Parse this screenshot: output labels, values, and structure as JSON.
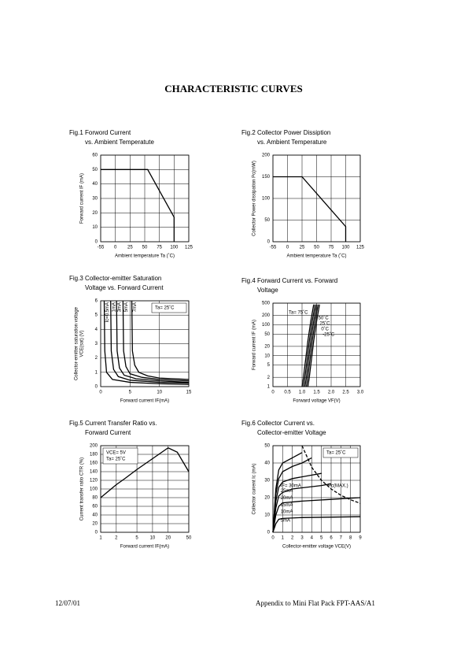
{
  "header": {
    "title": "CHARACTERISTIC CURVES"
  },
  "footer": {
    "date": "12/07/01",
    "text": "Appendix to Mini Flat Pack FPT-AAS/A1"
  },
  "chart_data": [
    {
      "type": "line",
      "title": "Fig.1 Forword Current",
      "subtitle": "vs. Ambient Temperatute",
      "xlabel": "Ambient temperature Ta (˚C)",
      "ylabel": [
        "Forward current IF (mA)"
      ],
      "xlim": [
        -55,
        125
      ],
      "xticks": [
        -55,
        0,
        25,
        50,
        75,
        100,
        125
      ],
      "ylim": [
        0,
        60
      ],
      "yticks": [
        0,
        10,
        20,
        30,
        40,
        50,
        60
      ],
      "grid": true,
      "color": "#000000",
      "series": [
        {
          "x": [
            -55,
            55,
            100,
            100
          ],
          "values": [
            50,
            50,
            17,
            0
          ]
        }
      ]
    },
    {
      "type": "line",
      "title": "Fig.2 Collector Power Dissiption",
      "subtitle": "vs. Ambient Temperature",
      "xlabel": "Ambient temperature Ta (˚C)",
      "ylabel": [
        "Collector Power dissipation Pc(mW)"
      ],
      "xlim": [
        -55,
        125
      ],
      "xticks": [
        -55,
        0,
        25,
        50,
        75,
        100,
        125
      ],
      "ylim": [
        0,
        200
      ],
      "yticks": [
        0,
        50,
        100,
        150,
        200
      ],
      "grid": true,
      "color": "#000000",
      "series": [
        {
          "x": [
            -55,
            25,
            100,
            100
          ],
          "values": [
            150,
            150,
            35,
            0
          ]
        }
      ]
    },
    {
      "type": "line",
      "title": "Fig.3 Collector-emitter Saturation",
      "subtitle": "Voltage vs. Forward Current",
      "xlabel": "Forward current IF(mA)",
      "ylabel": [
        "Collector-emitter saturation voltage",
        "VCE(sat) (V)"
      ],
      "xlim": [
        0,
        15
      ],
      "xticks": [
        0,
        5,
        10,
        15
      ],
      "ylim": [
        0,
        6
      ],
      "yticks": [
        0,
        1,
        2,
        3,
        4,
        5,
        6
      ],
      "grid": true,
      "color": "#000000",
      "annotations": [
        "Ta= 25˚C"
      ],
      "annotation_corner": "upper right",
      "series": [
        {
          "name": "Ic=0.5mA",
          "x": [
            0.6,
            0.7,
            1,
            2,
            5,
            10,
            15
          ],
          "values": [
            6,
            2.5,
            1,
            0.5,
            0.3,
            0.2,
            0.15
          ]
        },
        {
          "name": "1mA",
          "x": [
            1.7,
            1.8,
            2.2,
            3,
            5,
            10,
            15
          ],
          "values": [
            6,
            2.5,
            1.2,
            0.7,
            0.45,
            0.3,
            0.25
          ]
        },
        {
          "name": "3mA",
          "x": [
            2.7,
            2.8,
            3.2,
            4,
            6,
            10,
            15
          ],
          "values": [
            6,
            2.5,
            1.3,
            0.8,
            0.55,
            0.4,
            0.3
          ]
        },
        {
          "name": "5mA",
          "x": [
            3.8,
            3.9,
            4.3,
            5,
            7,
            10,
            15
          ],
          "values": [
            6,
            2.5,
            1.4,
            0.9,
            0.65,
            0.5,
            0.4
          ]
        },
        {
          "name": "7mA",
          "x": [
            5.3,
            5.4,
            5.8,
            6.5,
            8,
            10,
            15
          ],
          "values": [
            6,
            2.5,
            1.5,
            1,
            0.75,
            0.6,
            0.5
          ]
        }
      ]
    },
    {
      "type": "line",
      "title": "Fig.4 Forward Current vs. Forward",
      "subtitle": "Voltage",
      "xlabel": "Forward voltage VF(V)",
      "ylabel": [
        "Forward current IF (mA)"
      ],
      "xlim": [
        0,
        3
      ],
      "xticks": [
        0,
        0.5,
        {
          "value": 1,
          "label": "1.0"
        },
        1.5,
        {
          "value": 2,
          "label": "2.0"
        },
        2.5,
        {
          "value": 3,
          "label": "3.0"
        }
      ],
      "ylim": [
        1,
        500
      ],
      "yticks": [
        1,
        2,
        5,
        10,
        20,
        50,
        100,
        200,
        500
      ],
      "yscale": "log",
      "grid": true,
      "color": "#000000",
      "series": [
        {
          "name": "Ta= 75˚C",
          "x": [
            1,
            1.05,
            1.1,
            1.15,
            1.2,
            1.3,
            1.4
          ],
          "values": [
            1,
            2,
            5,
            12,
            30,
            130,
            450
          ]
        },
        {
          "name": "50˚C",
          "x": [
            1.05,
            1.1,
            1.15,
            1.2,
            1.25,
            1.35,
            1.45
          ],
          "values": [
            1,
            2,
            5,
            12,
            30,
            130,
            450
          ]
        },
        {
          "name": "25˚C",
          "x": [
            1.1,
            1.15,
            1.2,
            1.25,
            1.3,
            1.4,
            1.5
          ],
          "values": [
            1,
            2,
            5,
            12,
            30,
            130,
            450
          ]
        },
        {
          "name": "0˚C",
          "x": [
            1.15,
            1.2,
            1.25,
            1.3,
            1.35,
            1.45,
            1.55
          ],
          "values": [
            1,
            2,
            5,
            12,
            30,
            130,
            450
          ]
        },
        {
          "name": "-25˚C",
          "x": [
            1.2,
            1.25,
            1.3,
            1.35,
            1.4,
            1.5,
            1.6
          ],
          "values": [
            1,
            2,
            5,
            12,
            30,
            130,
            450
          ]
        }
      ]
    },
    {
      "type": "line",
      "title": "Fig.5 Current Transfer Ratio vs.",
      "subtitle": "Forward Current",
      "xlabel": "Forward current IF(mA)",
      "ylabel": [
        "Current transfer ratio CTR (%)"
      ],
      "xlim": [
        1,
        50
      ],
      "xticks": [
        1,
        2,
        5,
        10,
        20,
        50
      ],
      "xscale": "log",
      "ylim": [
        0,
        200
      ],
      "yticks": [
        0,
        20,
        40,
        60,
        80,
        100,
        120,
        140,
        160,
        180,
        200
      ],
      "grid": true,
      "color": "#000000",
      "annotations": [
        "VCE= 5V",
        "Ta= 25˚C"
      ],
      "annotation_corner": "upper left",
      "series": [
        {
          "x": [
            1,
            2,
            3,
            5,
            10,
            20,
            30,
            50
          ],
          "values": [
            80,
            110,
            125,
            145,
            170,
            195,
            185,
            140
          ]
        }
      ]
    },
    {
      "type": "line",
      "title": "Fig.6 Collector Current vs.",
      "subtitle": "Collector-emitter Voltage",
      "xlabel": "Collector-emitter voltage VCE(V)",
      "ylabel": [
        "Collector current Ic (mA)"
      ],
      "xlim": [
        0,
        9
      ],
      "xticks": [
        0,
        1,
        2,
        3,
        4,
        5,
        6,
        7,
        8,
        9
      ],
      "ylim": [
        0,
        50
      ],
      "yticks": [
        0,
        10,
        20,
        30,
        40,
        50
      ],
      "grid": true,
      "color": "#000000",
      "annotations": [
        "Ta= 25˚C"
      ],
      "annotation_corner": "upper right",
      "series": [
        {
          "name": "IF= 30mA",
          "x": [
            0,
            0.3,
            0.6,
            1,
            2,
            3
          ],
          "values": [
            0,
            25,
            36,
            40,
            43,
            46
          ]
        },
        {
          "name": "25mA",
          "x": [
            0,
            0.3,
            0.6,
            1,
            2,
            3,
            4
          ],
          "values": [
            0,
            22,
            31,
            35,
            38,
            40,
            43
          ]
        },
        {
          "name": "20mA",
          "x": [
            0,
            0.3,
            0.6,
            1,
            2,
            4,
            5
          ],
          "values": [
            0,
            18,
            26,
            29,
            31,
            33,
            34
          ]
        },
        {
          "name": "15mA",
          "x": [
            0,
            0.3,
            0.6,
            1,
            2,
            5,
            6
          ],
          "values": [
            0,
            14,
            21,
            23,
            25,
            27,
            28
          ]
        },
        {
          "name": "10mA",
          "x": [
            0,
            0.3,
            0.6,
            1,
            3,
            6,
            9
          ],
          "values": [
            0,
            10,
            15,
            17,
            18,
            19,
            20
          ]
        },
        {
          "name": "5mA",
          "x": [
            0,
            0.3,
            0.6,
            1,
            3,
            9
          ],
          "values": [
            0,
            5,
            7.5,
            8,
            8.5,
            9
          ]
        },
        {
          "name": "Pc(MAX.)",
          "x": [
            3,
            4,
            5,
            6,
            7,
            8,
            9
          ],
          "values": [
            50,
            37.5,
            30,
            25,
            21.4,
            18.8,
            16.7
          ],
          "dash": true
        }
      ]
    }
  ]
}
